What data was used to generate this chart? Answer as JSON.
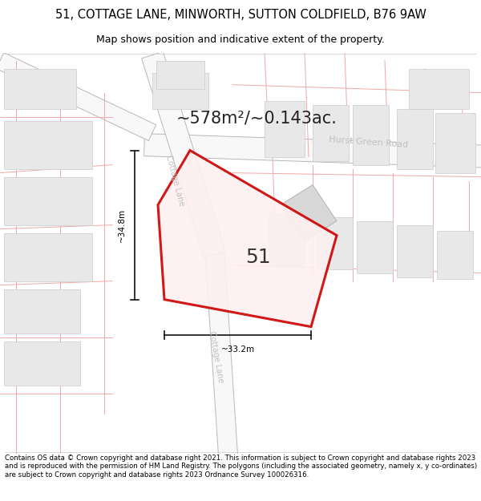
{
  "title_line1": "51, COTTAGE LANE, MINWORTH, SUTTON COLDFIELD, B76 9AW",
  "title_line2": "Map shows position and indicative extent of the property.",
  "footer_text": "Contains OS data © Crown copyright and database right 2021. This information is subject to Crown copyright and database rights 2023 and is reproduced with the permission of HM Land Registry. The polygons (including the associated geometry, namely x, y co-ordinates) are subject to Crown copyright and database rights 2023 Ordnance Survey 100026316.",
  "area_label": "~578m²/~0.143ac.",
  "number_label": "51",
  "width_label": "~33.2m",
  "height_label": "~34.8m",
  "road_label_hurst": "Hurst Green Road",
  "road_label_cottage_upper": "Cottage Lane",
  "road_label_cottage_lower": "Cottage Lane",
  "bg_color": "#ffffff",
  "road_edge_color": "#c8c8c8",
  "road_fill_color": "#f5f5f5",
  "parcel_line_color": "#f0a0a0",
  "plot_stroke_color": "#cc0000",
  "plot_fill_color": "#fdf0f0",
  "building_fill": "#e0e0e0",
  "building_edge": "#c8c8c8",
  "block_fill": "#e8e8e8",
  "block_edge": "#d0d0d0",
  "dim_color": "#111111",
  "road_text_color": "#c0c0c0",
  "area_text_color": "#222222",
  "num_text_color": "#333333",
  "title_fontsize": 10.5,
  "subtitle_fontsize": 9,
  "footer_fontsize": 6.2,
  "area_fontsize": 15,
  "num_fontsize": 18,
  "dim_fontsize": 7.5,
  "road_fontsize": 8
}
